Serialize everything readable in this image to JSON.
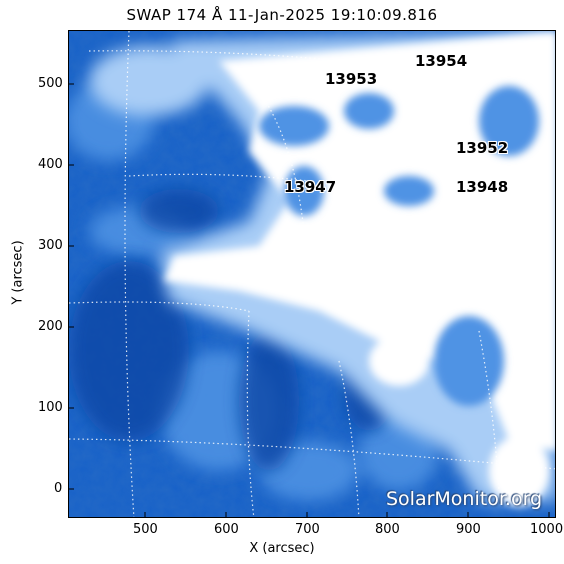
{
  "title": "SWAP 174 Å 11-Jan-2025 19:10:09.816",
  "xlabel": "X (arcsec)",
  "ylabel": "Y (arcsec)",
  "x_ticks": [
    "500",
    "600",
    "700",
    "800",
    "900",
    "1000"
  ],
  "y_ticks": [
    "0",
    "100",
    "200",
    "300",
    "400",
    "500"
  ],
  "active_regions": [
    {
      "label": "13954"
    },
    {
      "label": "13953"
    },
    {
      "label": "13952"
    },
    {
      "label": "13947"
    },
    {
      "label": "13948"
    }
  ],
  "watermark": "SolarMonitor.org",
  "colors": {
    "deep_blue": "#0b4fb5",
    "mid_blue": "#3d86df",
    "light_blue": "#9fc6f5",
    "white": "#ffffff"
  }
}
